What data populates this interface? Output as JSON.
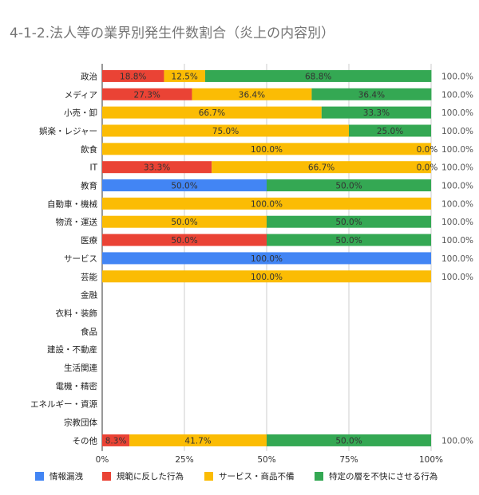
{
  "chart_data": {
    "type": "bar",
    "orientation": "horizontal",
    "stacked": "percent",
    "title": "4-1-2.法人等の業界別発生件数割合（炎上の内容別）",
    "categories": [
      "政治",
      "メディア",
      "小売・卸",
      "娯楽・レジャー",
      "飲食",
      "IT",
      "教育",
      "自動車・機械",
      "物流・運送",
      "医療",
      "サービス",
      "芸能",
      "金融",
      "衣料・装飾",
      "食品",
      "建設・不動産",
      "生活関連",
      "電機・精密",
      "エネルギー・資源",
      "宗教団体",
      "その他"
    ],
    "series": [
      {
        "name": "情報漏洩",
        "color": "#4285f4",
        "values": [
          0,
          0,
          0,
          0,
          0,
          0,
          50,
          0,
          0,
          0,
          100,
          0,
          null,
          null,
          null,
          null,
          null,
          null,
          null,
          null,
          0
        ],
        "labels": [
          "",
          "",
          "",
          "",
          "",
          "",
          "50.0%",
          "",
          "",
          "",
          "100.0%",
          "",
          "",
          "",
          "",
          "",
          "",
          "",
          "",
          "",
          ""
        ]
      },
      {
        "name": "規範に反した行為",
        "color": "#ea4335",
        "values": [
          18.8,
          27.3,
          0,
          0,
          0,
          33.3,
          0,
          0,
          0,
          50,
          0,
          0,
          null,
          null,
          null,
          null,
          null,
          null,
          null,
          null,
          8.3
        ],
        "labels": [
          "18.8%",
          "27.3%",
          "",
          "",
          "",
          "33.3%",
          "",
          "",
          "",
          "50.0%",
          "",
          "",
          "",
          "",
          "",
          "",
          "",
          "",
          "",
          "",
          "8.3%"
        ]
      },
      {
        "name": "サービス・商品不備",
        "color": "#fbbc04",
        "values": [
          12.5,
          36.4,
          66.7,
          75,
          100,
          66.7,
          0,
          100,
          50,
          0,
          0,
          100,
          null,
          null,
          null,
          null,
          null,
          null,
          null,
          null,
          41.7
        ],
        "labels": [
          "12.5%",
          "36.4%",
          "66.7%",
          "75.0%",
          "100.0%",
          "66.7%",
          "",
          "100.0%",
          "50.0%",
          "",
          "",
          "100.0%",
          "",
          "",
          "",
          "",
          "",
          "",
          "",
          "",
          "41.7%"
        ]
      },
      {
        "name": "特定の層を不快にさせる行為",
        "color": "#34a853",
        "values": [
          68.8,
          36.4,
          33.3,
          25,
          0,
          0,
          50,
          0,
          50,
          50,
          0,
          0,
          null,
          null,
          null,
          null,
          null,
          null,
          null,
          null,
          50
        ],
        "labels": [
          "68.8%",
          "36.4%",
          "33.3%",
          "25.0%",
          "0.0%",
          "0.0%",
          "50.0%",
          "",
          "50.0%",
          "50.0%",
          "",
          "",
          "",
          "",
          "",
          "",
          "",
          "",
          "",
          "",
          "50.0%"
        ]
      }
    ],
    "totals": [
      "100.0%",
      "100.0%",
      "100.0%",
      "100.0%",
      "100.0%",
      "100.0%",
      "100.0%",
      "100.0%",
      "100.0%",
      "100.0%",
      "100.0%",
      "100.0%",
      "",
      "",
      "",
      "",
      "",
      "",
      "",
      "",
      "100.0%"
    ],
    "x_ticks": [
      "0%",
      "25%",
      "50%",
      "75%",
      "100%"
    ],
    "xlim": [
      0,
      100
    ],
    "grid": true,
    "legend": "bottom"
  }
}
